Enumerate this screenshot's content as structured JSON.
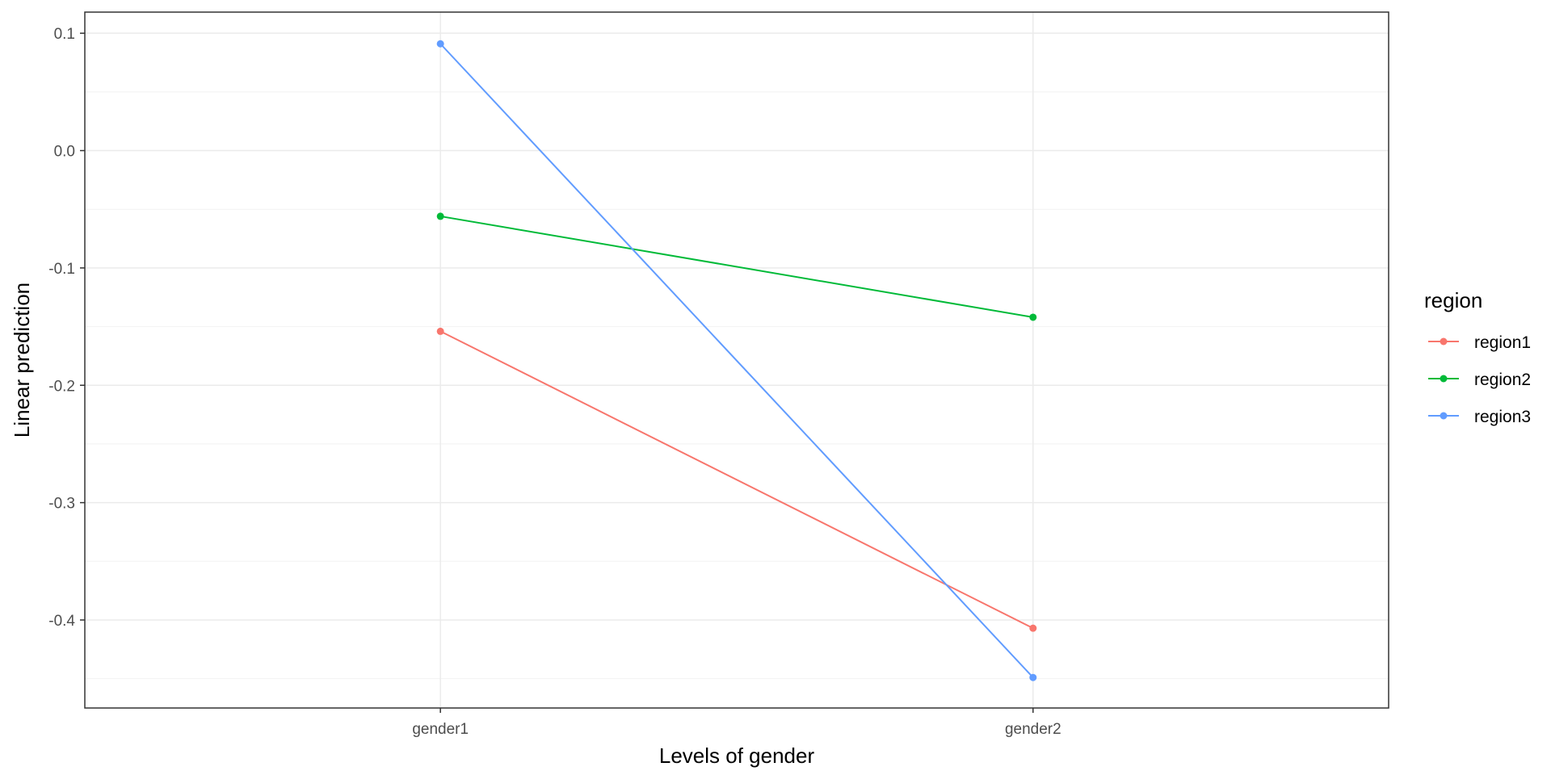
{
  "chart_data": {
    "type": "line",
    "x": [
      "gender1",
      "gender2"
    ],
    "xlabel": "Levels of gender",
    "ylabel": "Linear prediction",
    "ylim": [
      -0.475,
      0.118
    ],
    "yticks": [
      0.1,
      0.0,
      -0.1,
      -0.2,
      -0.3,
      -0.4
    ],
    "ytick_labels": [
      "0.1",
      "0.0",
      "-0.1",
      "-0.2",
      "-0.3",
      "-0.4"
    ],
    "grid": true,
    "legend": {
      "title": "region",
      "placement": "right"
    },
    "series": [
      {
        "name": "region1",
        "color": "#F8766D",
        "values": [
          -0.154,
          -0.407
        ]
      },
      {
        "name": "region2",
        "color": "#00BA38",
        "values": [
          -0.056,
          -0.142
        ]
      },
      {
        "name": "region3",
        "color": "#619CFF",
        "values": [
          0.091,
          -0.449
        ]
      }
    ]
  }
}
